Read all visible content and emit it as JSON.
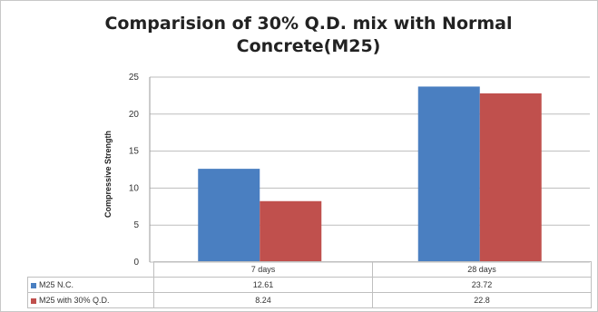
{
  "chart_data": {
    "type": "bar",
    "title": "Comparision of 30% Q.D. mix with Normal Concrete(M25)",
    "xlabel": "",
    "ylabel": "Compressive Strength",
    "ylim": [
      0,
      25
    ],
    "yticks": [
      0,
      5,
      10,
      15,
      20,
      25
    ],
    "grid": true,
    "legend": "data-table",
    "categories": [
      "7 days",
      "28 days"
    ],
    "series": [
      {
        "name": "M25 N.C.",
        "values": [
          12.61,
          23.72
        ],
        "display": [
          "12.61",
          "23.72"
        ],
        "color": "#4a7fc1"
      },
      {
        "name": "M25 with 30% Q.D.",
        "values": [
          8.24,
          22.8
        ],
        "display": [
          "8.24",
          "22.8"
        ],
        "color": "#c0504d"
      }
    ]
  }
}
